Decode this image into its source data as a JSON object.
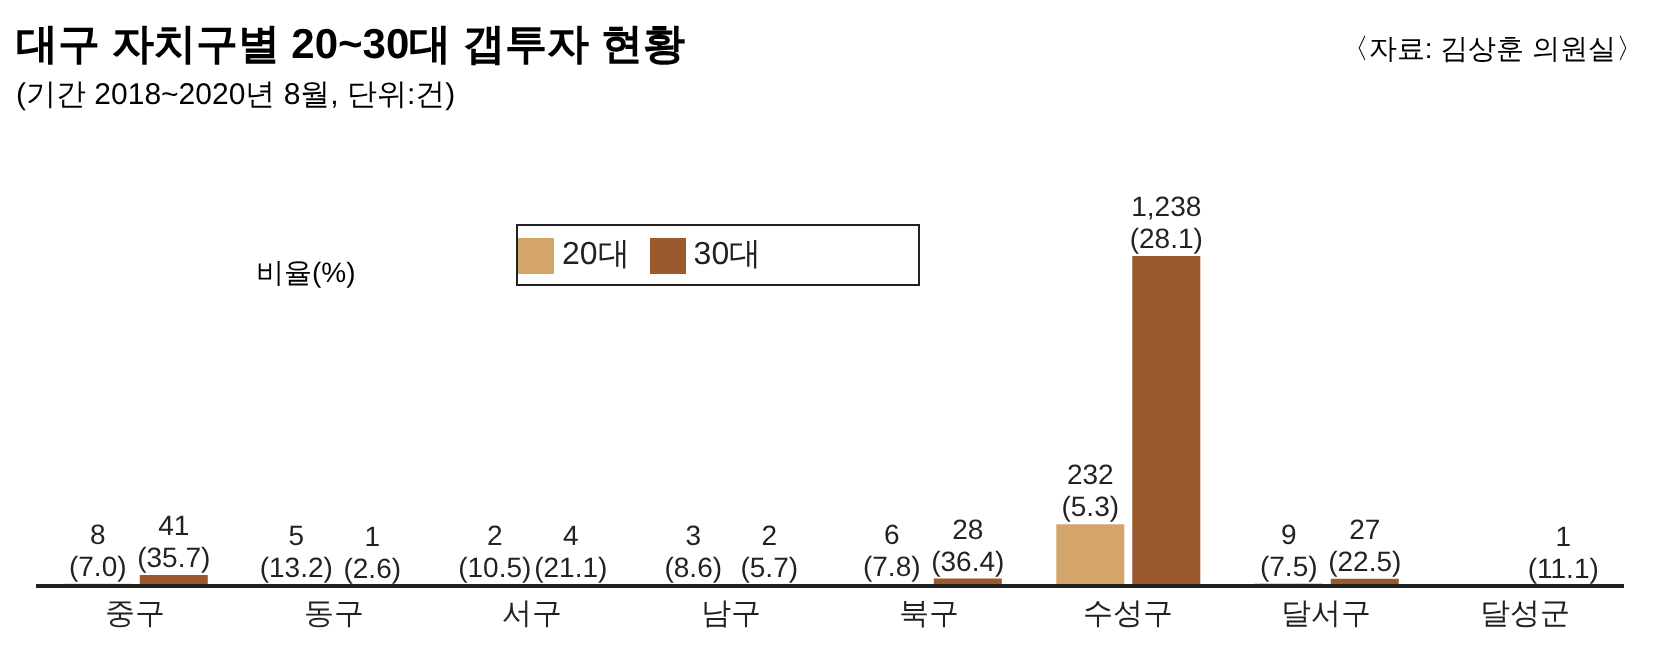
{
  "chart_data": {
    "type": "bar",
    "title": "대구 자치구별 20~30대 갭투자 현황",
    "subtitle": "(기간 2018~2020년 8월, 단위:건)",
    "annotations": [
      "〈자료: 김상훈 의원실〉",
      "비율(%)"
    ],
    "categories": [
      "중구",
      "동구",
      "서구",
      "남구",
      "북구",
      "수성구",
      "달서구",
      "달성군"
    ],
    "series": [
      {
        "name": "20대",
        "color": "#d4a56a",
        "values": [
          8,
          5,
          2,
          3,
          6,
          232,
          9,
          null
        ],
        "value_labels": [
          "8\n(7.0)",
          "5\n(13.2)",
          "2\n(10.5)",
          "3\n(8.6)",
          "6\n(7.8)",
          "232\n(5.3)",
          "9\n(7.5)",
          null
        ]
      },
      {
        "name": "30대",
        "color": "#9a5a2e",
        "values": [
          41,
          1,
          4,
          2,
          28,
          1238,
          27,
          1
        ],
        "value_labels": [
          "41\n(35.7)",
          "1\n(2.6)",
          "4\n(21.1)",
          "2\n(5.7)",
          "28\n(36.4)",
          "1,238\n(28.1)",
          "27\n(22.5)",
          "1\n(11.1)"
        ]
      }
    ],
    "legend": "top left"
  }
}
